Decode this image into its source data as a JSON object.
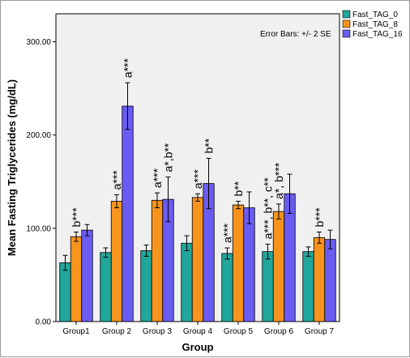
{
  "chart_data": {
    "type": "bar",
    "title": "",
    "xlabel": "Group",
    "ylabel": "Mean Fasting Triglycerides (mg/dL)",
    "ylim": [
      0,
      330
    ],
    "yticks": [
      0,
      100,
      200,
      300
    ],
    "ytick_labels": [
      "0.00",
      "100.00",
      "200.00",
      "300.00"
    ],
    "categories": [
      "Group1",
      "Group 2",
      "Group 3",
      "Group 4",
      "Group 5",
      "Group 6",
      "Group 7"
    ],
    "series": [
      {
        "name": "Fast_TAG_0",
        "color": "#20a69a",
        "values": [
          63,
          74,
          76,
          84,
          73,
          75,
          75
        ],
        "error": [
          8,
          5,
          6,
          8,
          6,
          8,
          5
        ]
      },
      {
        "name": "Fast_TAG_8",
        "color": "#f7941d",
        "values": [
          91,
          129,
          130,
          133,
          125,
          118,
          90
        ],
        "error": [
          5,
          7,
          8,
          4,
          4,
          8,
          6
        ]
      },
      {
        "name": "Fast_TAG_16",
        "color": "#6a5cf2",
        "values": [
          98,
          231,
          131,
          148,
          122,
          137,
          88
        ],
        "error": [
          6,
          25,
          24,
          27,
          17,
          21,
          10
        ]
      }
    ],
    "annotations": [
      {
        "category_index": 0,
        "series_index": 1,
        "text": "b***"
      },
      {
        "category_index": 1,
        "series_index": 1,
        "text": "a***"
      },
      {
        "category_index": 1,
        "series_index": 2,
        "text": "a***"
      },
      {
        "category_index": 2,
        "series_index": 1,
        "text": "a***"
      },
      {
        "category_index": 2,
        "series_index": 2,
        "text": "a*,b**"
      },
      {
        "category_index": 3,
        "series_index": 1,
        "text": "a***"
      },
      {
        "category_index": 3,
        "series_index": 2,
        "text": "b**"
      },
      {
        "category_index": 4,
        "series_index": 0,
        "text": "a***"
      },
      {
        "category_index": 4,
        "series_index": 1,
        "text": "b**"
      },
      {
        "category_index": 5,
        "series_index": 0,
        "text": "a***, b**, c**"
      },
      {
        "category_index": 5,
        "series_index": 1,
        "text": "a*, b***"
      },
      {
        "category_index": 6,
        "series_index": 1,
        "text": "b***"
      }
    ],
    "note": "Error Bars: +/- 2 SE",
    "legend_position": "top-right",
    "grid": false
  }
}
